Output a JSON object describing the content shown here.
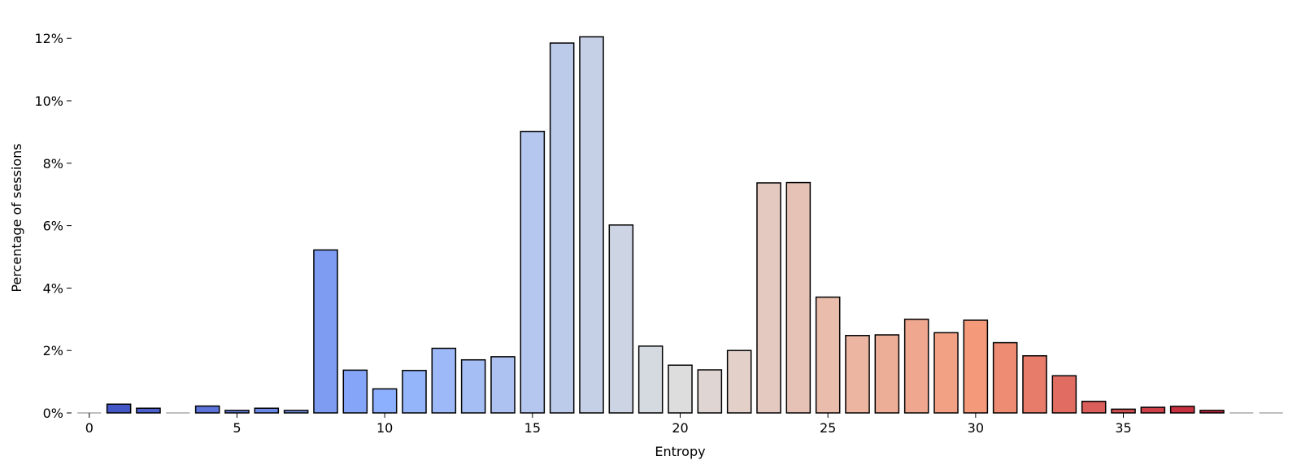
{
  "chart_data": {
    "type": "bar",
    "title": "",
    "xlabel": "Entropy",
    "ylabel": "Percentage of sessions",
    "x": [
      0,
      1,
      2,
      3,
      4,
      5,
      6,
      7,
      8,
      9,
      10,
      11,
      12,
      13,
      14,
      15,
      16,
      17,
      18,
      19,
      20,
      21,
      22,
      23,
      24,
      25,
      26,
      27,
      28,
      29,
      30,
      31,
      32,
      33,
      34,
      35,
      36,
      37,
      38,
      39,
      40
    ],
    "values": [
      0.0,
      0.28,
      0.15,
      0.0,
      0.22,
      0.08,
      0.15,
      0.08,
      5.22,
      1.37,
      0.77,
      1.36,
      2.07,
      1.7,
      1.8,
      9.02,
      11.85,
      12.05,
      6.02,
      2.14,
      1.53,
      1.38,
      2.0,
      7.37,
      7.38,
      3.71,
      2.48,
      2.5,
      3.0,
      2.57,
      2.97,
      2.25,
      1.83,
      1.19,
      0.37,
      0.12,
      0.18,
      0.21,
      0.08,
      0.0,
      0.0
    ],
    "ylim": [
      0,
      12.5
    ],
    "xlim": [
      -0.6,
      40.6
    ],
    "xticks": [
      {
        "value": 0,
        "label": "0"
      },
      {
        "value": 5,
        "label": "5"
      },
      {
        "value": 10,
        "label": "10"
      },
      {
        "value": 15,
        "label": "15"
      },
      {
        "value": 20,
        "label": "20"
      },
      {
        "value": 25,
        "label": "25"
      },
      {
        "value": 30,
        "label": "30"
      },
      {
        "value": 35,
        "label": "35"
      }
    ],
    "yticks": [
      {
        "value": 0,
        "label": "0%"
      },
      {
        "value": 2,
        "label": "2%"
      },
      {
        "value": 4,
        "label": "4%"
      },
      {
        "value": 6,
        "label": "6%"
      },
      {
        "value": 8,
        "label": "8%"
      },
      {
        "value": 10,
        "label": "10%"
      },
      {
        "value": 12,
        "label": "12%"
      }
    ],
    "grid": false,
    "colormap": "coolwarm",
    "colors": {
      "bar_edge": "#000000",
      "zero_line": "#aaaaaa",
      "axis": "#000000"
    }
  }
}
